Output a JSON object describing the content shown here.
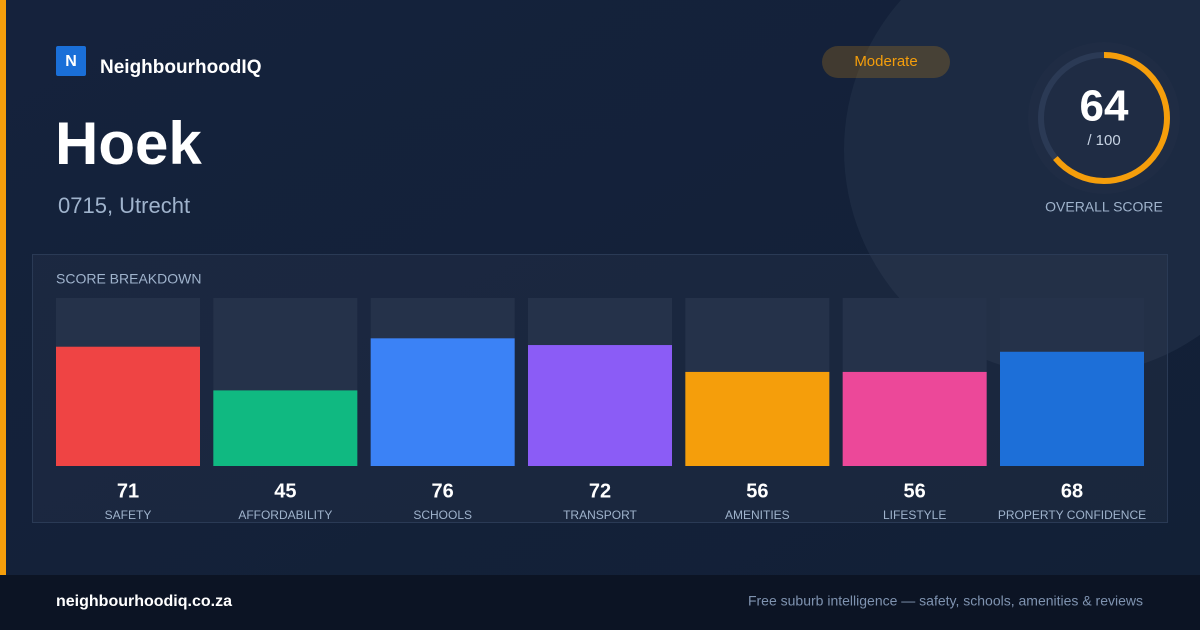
{
  "brand": {
    "logo": "N",
    "name": "NeighbourhoodIQ"
  },
  "header": {
    "title": "Hoek",
    "subtitle": "0715, Utrecht",
    "badge": "Moderate"
  },
  "score": {
    "value": 64,
    "max": {
      "value": 100,
      "label": "/ 100"
    },
    "label": "OVERALL SCORE"
  },
  "chart_data": {
    "type": "bar",
    "title": "SCORE BREAKDOWN",
    "categories": [
      "SAFETY",
      "AFFORDABILITY",
      "SCHOOLS",
      "TRANSPORT",
      "AMENITIES",
      "LIFESTYLE",
      "PROPERTY CONFIDENCE"
    ],
    "values": [
      71,
      45,
      76,
      72,
      56,
      56,
      68
    ],
    "colors": [
      "#ef4444",
      "#10b981",
      "#3b82f6",
      "#8b5cf6",
      "#f59e0b",
      "#ec4899",
      "#1d6fd8"
    ],
    "ylim": [
      0,
      100
    ]
  },
  "footer": {
    "url": "neighbourhoodiq.co.za",
    "tagline": "Free suburb intelligence — safety, schools, amenities & reviews"
  }
}
